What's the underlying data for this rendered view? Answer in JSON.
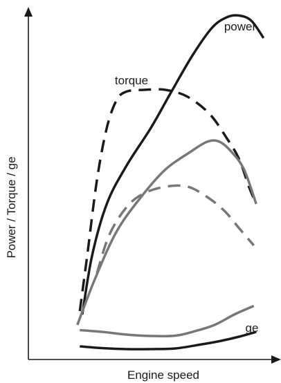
{
  "chart_data": {
    "type": "line",
    "xlabel": "Engine speed",
    "ylabel": "Power / Torque / ge",
    "grid": false,
    "xlim": [
      0,
      100
    ],
    "ylim": [
      0,
      100
    ],
    "annotations": [
      {
        "text": "power",
        "for": "power-high"
      },
      {
        "text": "torque",
        "for": "torque-high"
      },
      {
        "text": "ge",
        "for": "ge-gray"
      }
    ],
    "series": [
      {
        "id": "power-high",
        "color": "#1a1a1a",
        "dash": "solid",
        "width": 3.5,
        "x": [
          22,
          26,
          32,
          40,
          50,
          58,
          67,
          75,
          81,
          86,
          91,
          96
        ],
        "y": [
          13,
          30,
          45,
          56,
          67,
          77,
          88,
          96,
          99,
          99.5,
          98,
          93
        ]
      },
      {
        "id": "torque-high",
        "color": "#1a1a1a",
        "dash": "dashed",
        "width": 3.5,
        "x": [
          21,
          24,
          28,
          32,
          36,
          40,
          47,
          56,
          65,
          74,
          81,
          86,
          90,
          93
        ],
        "y": [
          14,
          30,
          52,
          67,
          75,
          77.5,
          78,
          78,
          76,
          71,
          64,
          58,
          50,
          45
        ]
      },
      {
        "id": "power-low",
        "color": "#777777",
        "dash": "solid",
        "width": 3.5,
        "x": [
          20,
          27,
          36,
          46,
          56,
          66,
          73,
          78,
          83,
          88,
          93
        ],
        "y": [
          10,
          23,
          37,
          47,
          55,
          60,
          63,
          63,
          60,
          55,
          45
        ]
      },
      {
        "id": "torque-low",
        "color": "#777777",
        "dash": "dashed",
        "width": 3.5,
        "x": [
          28,
          33,
          40,
          47,
          56,
          65,
          73,
          80,
          86,
          92
        ],
        "y": [
          25,
          36,
          44,
          48,
          50,
          50,
          47,
          43,
          38,
          33
        ]
      },
      {
        "id": "ge-gray",
        "color": "#777777",
        "dash": "solid",
        "width": 3.5,
        "x": [
          21,
          30,
          40,
          50,
          60,
          68,
          76,
          84,
          92
        ],
        "y": [
          8.5,
          8,
          7.2,
          6.8,
          6.9,
          8.2,
          10,
          13,
          15.5
        ]
      },
      {
        "id": "ge-black",
        "color": "#1a1a1a",
        "dash": "solid",
        "width": 3.5,
        "x": [
          21,
          30,
          40,
          50,
          60,
          70,
          78,
          86,
          93
        ],
        "y": [
          3.8,
          3.3,
          3.0,
          3.0,
          3.2,
          4.3,
          5.3,
          6.6,
          8.0
        ]
      }
    ]
  }
}
